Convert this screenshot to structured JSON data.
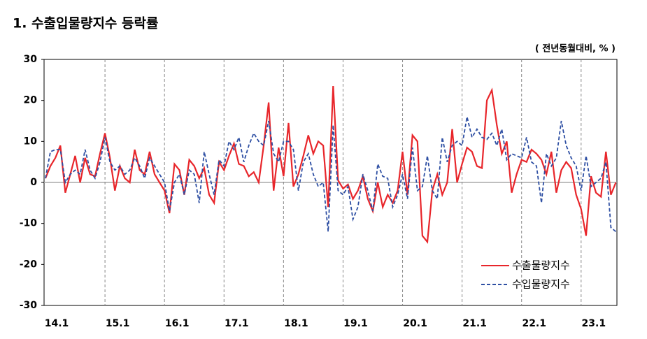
{
  "chart_data": {
    "type": "line",
    "title": "1. 수출입물량지수 등락률",
    "subtitle": "( 전년동월대비, % )",
    "categories": [
      "14.1",
      null,
      null,
      null,
      null,
      null,
      null,
      null,
      null,
      null,
      null,
      null,
      "15.1",
      null,
      null,
      null,
      null,
      null,
      null,
      null,
      null,
      null,
      null,
      null,
      "16.1",
      null,
      null,
      null,
      null,
      null,
      null,
      null,
      null,
      null,
      null,
      null,
      "17.1",
      null,
      null,
      null,
      null,
      null,
      null,
      null,
      null,
      null,
      null,
      null,
      "18.1",
      null,
      null,
      null,
      null,
      null,
      null,
      null,
      null,
      null,
      null,
      null,
      "19.1",
      null,
      null,
      null,
      null,
      null,
      null,
      null,
      null,
      null,
      null,
      null,
      "20.1",
      null,
      null,
      null,
      null,
      null,
      null,
      null,
      null,
      null,
      null,
      null,
      "21.1",
      null,
      null,
      null,
      null,
      null,
      null,
      null,
      null,
      null,
      null,
      null,
      "22.1",
      null,
      null,
      null,
      null,
      null,
      null,
      null,
      null,
      null,
      null,
      null,
      "23.1",
      null,
      null,
      null,
      null,
      null,
      null,
      null
    ],
    "series": [
      {
        "name": "수출물량지수",
        "color": "#e8262b",
        "dash": false,
        "values": [
          1,
          4,
          6,
          9,
          -2.5,
          2,
          6.5,
          0,
          6,
          2,
          1.5,
          7,
          12,
          6,
          -2,
          4,
          1,
          0,
          8,
          3,
          2,
          7.5,
          2,
          0,
          -2,
          -7.5,
          4.5,
          3,
          -3,
          5.5,
          4,
          1,
          3.5,
          -3,
          -5,
          5,
          3,
          6.5,
          9.5,
          4.5,
          4,
          1.5,
          2.5,
          0,
          9,
          19.5,
          -2,
          8.5,
          1.5,
          14.5,
          -1,
          2,
          6.5,
          11.5,
          7,
          10,
          9,
          -6,
          23.5,
          0.5,
          -1.5,
          -0.5,
          -4,
          -2,
          1.5,
          -4,
          -7,
          0,
          -6,
          -3,
          -5,
          -2,
          7.5,
          -3,
          11.5,
          10,
          -13,
          -14.5,
          -2,
          2,
          -3,
          0,
          13,
          0,
          4.5,
          8.5,
          7.5,
          4,
          3.5,
          20,
          22.5,
          14,
          7,
          10,
          -2.5,
          2,
          5.5,
          5,
          8,
          7,
          5.5,
          2,
          7.5,
          -2.5,
          3,
          5,
          3.5,
          -3,
          -6.5,
          -13,
          1.5,
          -2.5,
          -3.5,
          7.5,
          -3,
          0
        ]
      },
      {
        "name": "수입물량지수",
        "color": "#2e4fa3",
        "dash": true,
        "values": [
          1,
          7.5,
          8,
          8,
          0,
          2,
          3,
          2,
          8,
          3,
          1,
          5,
          11,
          5,
          3,
          4,
          2,
          3,
          6,
          4,
          1,
          6,
          4,
          2,
          0,
          -7,
          0,
          2,
          -3,
          3,
          2,
          -5,
          7.5,
          2,
          -3,
          5.5,
          4,
          10,
          8,
          11,
          5,
          9,
          12,
          10,
          9,
          15,
          7,
          5,
          10,
          10,
          8,
          -2,
          5,
          7,
          2,
          -1,
          0,
          -12,
          14,
          -2,
          -3,
          -1,
          -9,
          -6,
          2,
          -2,
          -7,
          4.5,
          1.5,
          1,
          -6,
          -3,
          2,
          -4,
          8.5,
          -2,
          -1,
          6.5,
          -2,
          -4,
          11,
          5,
          9,
          10,
          9,
          16,
          11,
          13,
          11,
          10.5,
          12,
          9,
          13,
          5.5,
          7,
          6.5,
          6,
          11,
          5,
          4,
          -5,
          7,
          4,
          6,
          15,
          9,
          6,
          4,
          -2,
          6.5,
          -1,
          0,
          1,
          5,
          -11,
          -12
        ]
      }
    ],
    "ylim": [
      -30,
      30
    ],
    "yticks": [
      -30,
      -20,
      -10,
      0,
      10,
      20,
      30
    ],
    "legend": "lower right"
  }
}
